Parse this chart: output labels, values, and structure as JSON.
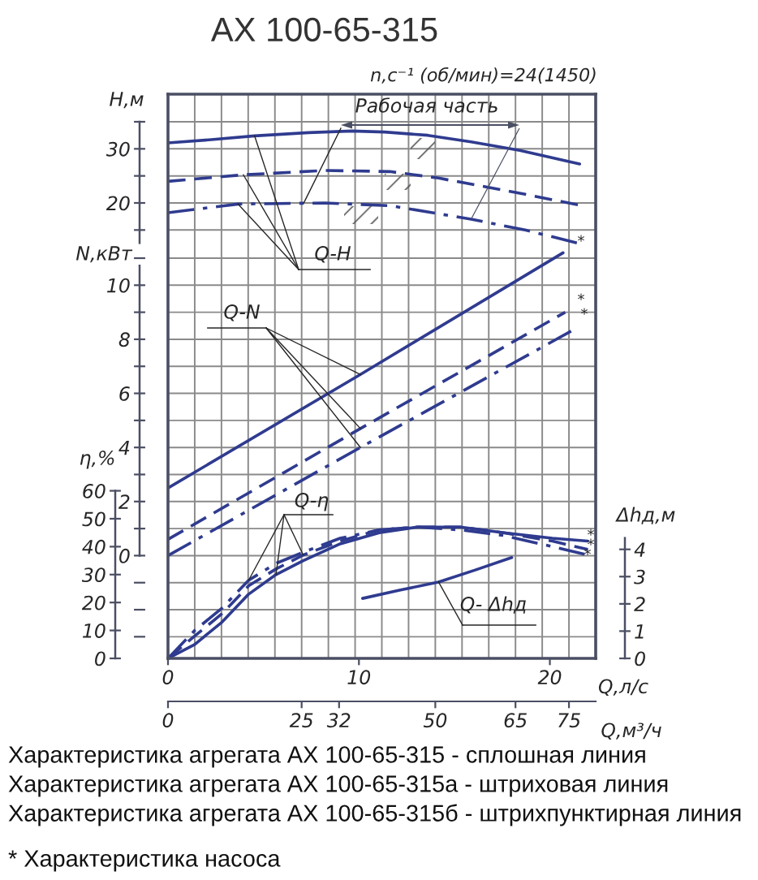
{
  "chart_data": [
    {
      "type": "line",
      "title": "АХ 100-65-315",
      "subtitle": "n,с⁻¹ (об/мин)=24(1450)",
      "ylabel": "H,м",
      "xlim": [
        0,
        80
      ],
      "xticks": [
        {
          "value": 5,
          "label": null
        },
        {
          "value": 10,
          "label": null
        },
        {
          "value": 15,
          "label": null
        },
        {
          "value": 20,
          "label": null
        },
        {
          "value": 25,
          "label": null
        },
        {
          "value": 30,
          "label": null
        },
        {
          "value": 35,
          "label": null
        },
        {
          "value": 40,
          "label": null
        },
        {
          "value": 45,
          "label": null
        },
        {
          "value": 50,
          "label": null
        },
        {
          "value": 55,
          "label": null
        },
        {
          "value": 60,
          "label": null
        },
        {
          "value": 65,
          "label": null
        },
        {
          "value": 70,
          "label": null
        },
        {
          "value": 75,
          "label": null
        }
      ],
      "ylim": [
        11.3,
        40.1
      ],
      "yticks": [
        {
          "value": 15,
          "label": null
        },
        20,
        {
          "value": 25,
          "label": null
        },
        30,
        {
          "value": 35,
          "label": null
        }
      ],
      "tick_labels": "y",
      "grid": true,
      "series": [
        {
          "line_style": "solid",
          "color": "#2f3b8f",
          "x": [
            0,
            8.1,
            16.2,
            26.3,
            34.4,
            40.5,
            48.6,
            56.7,
            65.8,
            77.0
          ],
          "values": [
            31.1,
            31.7,
            32.4,
            33.0,
            33.3,
            33.1,
            32.5,
            31.3,
            29.7,
            27.2
          ]
        },
        {
          "line_style": "dashed",
          "color": "#2f3b8f",
          "x": [
            0,
            14.1,
            29.3,
            41.5,
            50.6,
            58.7,
            66.8,
            77.0
          ],
          "values": [
            24.0,
            25.2,
            26.0,
            25.8,
            24.6,
            23.1,
            21.6,
            19.6
          ]
        },
        {
          "line_style": "dashdot",
          "color": "#2f3b8f",
          "x": [
            0,
            13.1,
            29.3,
            41.5,
            56.7,
            66.8,
            77.0
          ],
          "values": [
            18.2,
            19.8,
            20.0,
            19.5,
            17.0,
            15.0,
            12.5
          ]
        }
      ],
      "annotations": [
        {
          "text": "Q-H",
          "x": 16.2,
          "y": 32.4
        },
        {
          "text": "Рабочая часть",
          "x": 25.4,
          "y": 20.0
        },
        "*"
      ]
    },
    {
      "type": "line",
      "ylabel": "N,кВт",
      "xlim": [
        0,
        80
      ],
      "xticks": [
        {
          "value": 5,
          "label": null
        },
        {
          "value": 10,
          "label": null
        },
        {
          "value": 15,
          "label": null
        },
        {
          "value": 20,
          "label": null
        },
        {
          "value": 25,
          "label": null
        },
        {
          "value": 30,
          "label": null
        },
        {
          "value": 35,
          "label": null
        },
        {
          "value": 40,
          "label": null
        },
        {
          "value": 45,
          "label": null
        },
        {
          "value": 50,
          "label": null
        },
        {
          "value": 55,
          "label": null
        },
        {
          "value": 60,
          "label": null
        },
        {
          "value": 65,
          "label": null
        },
        {
          "value": 70,
          "label": null
        },
        {
          "value": 75,
          "label": null
        }
      ],
      "ylim": [
        -3.8,
        11.3
      ],
      "yticks": [
        {
          "value": -3,
          "label": null
        },
        {
          "value": -2,
          "label": null
        },
        {
          "value": -1,
          "label": null
        },
        0,
        {
          "value": 1,
          "label": null
        },
        2,
        {
          "value": 3,
          "label": null
        },
        4,
        {
          "value": 5,
          "label": null
        },
        6,
        {
          "value": 7,
          "label": null
        },
        8,
        {
          "value": 9,
          "label": null
        },
        10,
        {
          "value": 11,
          "label": null
        }
      ],
      "tick_labels": "y",
      "grid": true,
      "series": [
        {
          "line_style": "solid",
          "color": "#2f3b8f",
          "x": [
            0,
            36,
            73.9
          ],
          "values": [
            2.5,
            6.7,
            11.2
          ]
        },
        {
          "line_style": "dashed",
          "color": "#2f3b8f",
          "x": [
            0,
            36,
            74.3
          ],
          "values": [
            0.6,
            4.7,
            9.0
          ]
        },
        {
          "line_style": "dashdot",
          "color": "#2f3b8f",
          "x": [
            0,
            36,
            75.4
          ],
          "values": [
            0.0,
            4.0,
            8.3
          ]
        }
      ],
      "annotations": [
        {
          "text": "Q-N",
          "x": 36,
          "y": 6.7
        },
        "*",
        "*"
      ]
    },
    {
      "type": "line",
      "ylabel": "η,%",
      "y2label": "Δhд,м",
      "xlabel": "Q,м³/ч",
      "x2label": "Q,л/с",
      "xlim": [
        0,
        80
      ],
      "xticks": [
        0,
        25,
        32,
        50,
        65,
        75
      ],
      "x2lim": [
        0,
        22.4
      ],
      "x2ticks": [
        0,
        10,
        20
      ],
      "ylim": [
        0,
        202
      ],
      "yticks": [
        0,
        10,
        20,
        30,
        40,
        50,
        60
      ],
      "y2lim": [
        0,
        20.7
      ],
      "y2ticks": [
        0,
        1,
        2,
        3,
        4
      ],
      "series": [
        {
          "line_style": "solid",
          "color": "#2f3b8f",
          "x": [
            0,
            5,
            10.1,
            15.1,
            20.2,
            25.3,
            32.2,
            39.5,
            46.6,
            54.7,
            62.8,
            71.9,
            78.5
          ],
          "values": [
            0,
            5,
            13,
            23,
            30,
            35,
            41,
            45,
            47,
            47,
            45,
            43,
            42
          ]
        },
        {
          "line_style": "dashed",
          "color": "#2f3b8f",
          "x": [
            0,
            5,
            10.1,
            15.1,
            20.2,
            25.3,
            32.2,
            39.5,
            46.6,
            54.7,
            62.8,
            71.9,
            78.5
          ],
          "values": [
            0,
            8,
            16,
            26,
            32,
            37,
            42,
            46,
            47,
            47,
            45,
            42,
            39
          ]
        },
        {
          "line_style": "dashdot",
          "color": "#2f3b8f",
          "x": [
            0,
            5,
            10.1,
            15.1,
            20.2,
            25.3,
            32.2,
            39.5,
            46.6,
            54.7,
            62.8,
            71.9,
            78.5
          ],
          "values": [
            0,
            10,
            18,
            28,
            34,
            38,
            43,
            46,
            47,
            46,
            44,
            40,
            37
          ]
        },
        {
          "axis": "y2",
          "line_style": "solid",
          "color": "#2f3b8f",
          "x": [
            36.4,
            43.3,
            50.6,
            57.6,
            64.3
          ],
          "values": [
            2.2,
            2.5,
            2.8,
            3.25,
            3.7
          ]
        }
      ],
      "annotations": [
        {
          "text": "Q-η",
          "x": 15.1,
          "y": 28
        },
        {
          "text": "Q- Δhд",
          "x": 50.6,
          "y": 27.4
        },
        "*",
        "*",
        "*",
        "Характеристика агрегата АХ 100-65-315 - сплошная линия",
        "Характеристика агрегата АХ 100-65-315а - штриховая линия",
        "Характеристика агрегата АХ 100-65-315б - штрихпунктирная линия",
        "* Характеристика насоса"
      ]
    }
  ]
}
